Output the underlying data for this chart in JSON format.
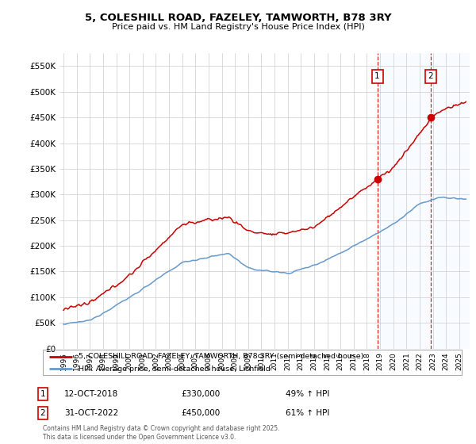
{
  "title": "5, COLESHILL ROAD, FAZELEY, TAMWORTH, B78 3RY",
  "subtitle": "Price paid vs. HM Land Registry's House Price Index (HPI)",
  "ylabel_ticks": [
    "£0",
    "£50K",
    "£100K",
    "£150K",
    "£200K",
    "£250K",
    "£300K",
    "£350K",
    "£400K",
    "£450K",
    "£500K",
    "£550K"
  ],
  "ytick_values": [
    0,
    50000,
    100000,
    150000,
    200000,
    250000,
    300000,
    350000,
    400000,
    450000,
    500000,
    550000
  ],
  "ylim": [
    0,
    575000
  ],
  "xlim_start": 1994.7,
  "xlim_end": 2025.8,
  "red_line_color": "#cc0000",
  "blue_line_color": "#6699cc",
  "blue_shade_color": "#ddeeff",
  "sale1_date": 2018.79,
  "sale1_price": 330000,
  "sale2_date": 2022.83,
  "sale2_price": 450000,
  "legend_line1": "5, COLESHILL ROAD, FAZELEY, TAMWORTH, B78 3RY (semi-detached house)",
  "legend_line2": "HPI: Average price, semi-detached house, Lichfield",
  "footer": "Contains HM Land Registry data © Crown copyright and database right 2025.\nThis data is licensed under the Open Government Licence v3.0.",
  "annotation1_date_str": "12-OCT-2018",
  "annotation1_price_str": "£330,000",
  "annotation1_hpi_str": "49% ↑ HPI",
  "annotation2_date_str": "31-OCT-2022",
  "annotation2_price_str": "£450,000",
  "annotation2_hpi_str": "61% ↑ HPI"
}
